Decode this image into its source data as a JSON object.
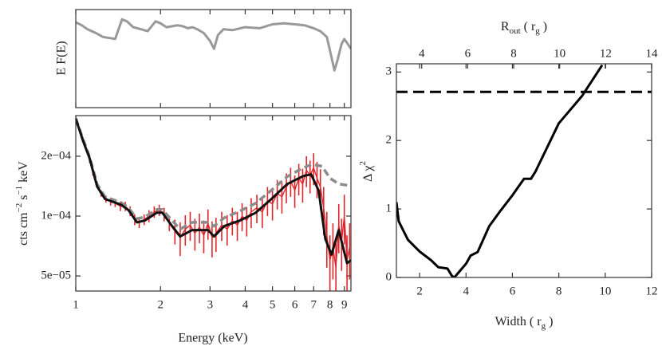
{
  "chart_data": [
    {
      "type": "line",
      "ylabel": "E F(E)",
      "log_x": true,
      "xlim": [
        1,
        9.5
      ],
      "ylim": [
        0,
        1
      ],
      "color": "#999999",
      "x": [
        1.0,
        1.05,
        1.1,
        1.18,
        1.25,
        1.32,
        1.38,
        1.42,
        1.46,
        1.52,
        1.6,
        1.7,
        1.8,
        1.86,
        1.92,
        2.0,
        2.1,
        2.2,
        2.3,
        2.4,
        2.5,
        2.6,
        2.7,
        2.85,
        3.0,
        3.1,
        3.2,
        3.35,
        3.6,
        4.0,
        4.5,
        5.0,
        5.5,
        6.0,
        6.5,
        7.0,
        7.4,
        7.8,
        8.05,
        8.3,
        8.5,
        8.8,
        9.0,
        9.2,
        9.4,
        9.5
      ],
      "values": [
        0.87,
        0.84,
        0.8,
        0.76,
        0.72,
        0.71,
        0.7,
        0.8,
        0.9,
        0.88,
        0.82,
        0.8,
        0.78,
        0.83,
        0.88,
        0.86,
        0.82,
        0.83,
        0.84,
        0.83,
        0.81,
        0.82,
        0.8,
        0.76,
        0.68,
        0.6,
        0.74,
        0.8,
        0.79,
        0.82,
        0.81,
        0.85,
        0.86,
        0.85,
        0.84,
        0.81,
        0.78,
        0.72,
        0.55,
        0.38,
        0.48,
        0.65,
        0.7,
        0.66,
        0.62,
        0.6
      ]
    },
    {
      "type": "line",
      "xlabel": "Energy (keV)",
      "ylabel": [
        "cts cm",
        "−2",
        " s",
        "−1",
        " keV"
      ],
      "log_x": true,
      "log_y": true,
      "xlim": [
        1,
        9.5
      ],
      "ylim": [
        4.2e-05,
        0.00032
      ],
      "xticks": [
        1,
        2,
        3,
        4,
        5,
        6,
        7,
        8,
        9
      ],
      "yticks": [
        {
          "value": 5e-05,
          "label": "5e−05"
        },
        {
          "value": 0.0001,
          "label": "1e−04"
        },
        {
          "value": 0.0002,
          "label": "2e−04"
        }
      ],
      "series": [
        {
          "style": "errorbar",
          "color": "#e0262a",
          "x": [
            1.0,
            1.03,
            1.06,
            1.09,
            1.12,
            1.15,
            1.19,
            1.23,
            1.28,
            1.33,
            1.38,
            1.44,
            1.5,
            1.56,
            1.62,
            1.68,
            1.75,
            1.82,
            1.9,
            1.98,
            2.06,
            2.15,
            2.25,
            2.35,
            2.45,
            2.55,
            2.65,
            2.75,
            2.85,
            2.95,
            3.05,
            3.15,
            3.3,
            3.45,
            3.6,
            3.75,
            3.9,
            4.05,
            4.2,
            4.4,
            4.6,
            4.8,
            5.0,
            5.2,
            5.4,
            5.6,
            5.8,
            6.0,
            6.2,
            6.4,
            6.6,
            6.8,
            7.0,
            7.2,
            7.4,
            7.6,
            7.8,
            8.0,
            8.2,
            8.4,
            8.6,
            8.8,
            9.0,
            9.2,
            9.4
          ],
          "values": [
            0.0003,
            0.000275,
            0.000245,
            0.000215,
            0.00019,
            0.000165,
            0.000145,
            0.00013,
            0.000122,
            0.000118,
            0.000116,
            0.000112,
            0.000112,
            0.000106,
            9.6e-05,
            9.3e-05,
            9.6e-05,
            0.0001,
            0.000105,
            0.000107,
            0.000102,
            9.2e-05,
            8.4e-05,
            7.8e-05,
            8.6e-05,
            9e-05,
            8.2e-05,
            8.8e-05,
            8e-05,
            9.2e-05,
            7.8e-05,
            8.2e-05,
            9e-05,
            8.6e-05,
            9.5e-05,
            9e-05,
            0.0001,
            9.5e-05,
            0.000105,
            0.00011,
            0.000105,
            0.00012,
            0.000115,
            0.00013,
            0.000125,
            0.00014,
            0.00015,
            0.000135,
            0.000155,
            0.000145,
            0.00017,
            0.00016,
            0.000175,
            0.000155,
            0.00014,
            0.00011,
            8e-05,
            6e-05,
            7e-05,
            5.5e-05,
            9e-05,
            7.5e-05,
            0.0001,
            6e-05,
            7e-05
          ],
          "errors": [
            5e-06,
            5e-06,
            5e-06,
            5e-06,
            5e-06,
            5e-06,
            5e-06,
            5e-06,
            5e-06,
            5e-06,
            5e-06,
            6e-06,
            6e-06,
            6e-06,
            6e-06,
            6e-06,
            6e-06,
            7e-06,
            7e-06,
            7e-06,
            8e-06,
            8e-06,
            1.2e-05,
            1.5e-05,
            1.5e-05,
            1.5e-05,
            1.5e-05,
            1.5e-05,
            1.5e-05,
            1.6e-05,
            1.6e-05,
            1.6e-05,
            1.5e-05,
            1.5e-05,
            1.5e-05,
            1.5e-05,
            1.6e-05,
            1.6e-05,
            1.8e-05,
            1.8e-05,
            1.8e-05,
            2e-05,
            2e-05,
            2.2e-05,
            2.2e-05,
            2.4e-05,
            2.5e-05,
            2.5e-05,
            2.8e-05,
            2.8e-05,
            3e-05,
            3e-05,
            3.2e-05,
            3.2e-05,
            3.2e-05,
            3e-05,
            2.5e-05,
            2e-05,
            2.2e-05,
            1.8e-05,
            2.5e-05,
            2.2e-05,
            2.8e-05,
            2e-05,
            2.2e-05
          ]
        },
        {
          "style": "dashed",
          "color": "#8c8c8c",
          "x": [
            1.0,
            1.06,
            1.12,
            1.19,
            1.27,
            1.45,
            1.54,
            1.65,
            1.76,
            1.94,
            2.03,
            2.2,
            2.35,
            2.59,
            2.95,
            3.1,
            3.37,
            3.83,
            4.36,
            4.96,
            5.64,
            6.43,
            6.9,
            7.5,
            8.0,
            8.6,
            9.5
          ],
          "values": [
            0.00031,
            0.000245,
            0.000198,
            0.000145,
            0.000125,
            0.000117,
            0.00011,
            9.7e-05,
            9.9e-05,
            0.000108,
            0.000108,
            9.5e-05,
            8.6e-05,
            9.3e-05,
            9.3e-05,
            8.9e-05,
            9.8e-05,
            0.000106,
            0.000116,
            0.000135,
            0.000158,
            0.000175,
            0.000182,
            0.000178,
            0.000155,
            0.000145,
            0.000142
          ]
        },
        {
          "style": "solid",
          "color": "#111111",
          "x": [
            1.0,
            1.06,
            1.12,
            1.19,
            1.27,
            1.45,
            1.54,
            1.65,
            1.76,
            1.94,
            2.03,
            2.2,
            2.35,
            2.59,
            2.95,
            3.1,
            3.37,
            3.83,
            4.36,
            4.96,
            5.64,
            6.43,
            6.86,
            7.3,
            7.7,
            8.1,
            8.6,
            9.2,
            9.5
          ],
          "values": [
            0.000309,
            0.00024,
            0.000195,
            0.000141,
            0.000122,
            0.000114,
            0.000107,
            9.3e-05,
            9.5e-05,
            0.000104,
            0.000104,
            8.9e-05,
            7.9e-05,
            8.5e-05,
            8.5e-05,
            7.9e-05,
            8.9e-05,
            9.5e-05,
            0.000104,
            0.000122,
            0.000145,
            0.000159,
            0.000162,
            0.000134,
            7.7e-05,
            6.4e-05,
            8.5e-05,
            5.8e-05,
            6e-05
          ]
        }
      ]
    },
    {
      "type": "line",
      "xlabel": [
        "Width ( r",
        "g",
        " )"
      ],
      "ylabel": [
        "Δ χ",
        "2"
      ],
      "x2label": [
        "R",
        "out",
        " ( r",
        "g",
        " )"
      ],
      "xlim": [
        1,
        12
      ],
      "ylim": [
        0,
        3.12
      ],
      "x2lim": [
        2.9,
        14
      ],
      "xticks": [
        2,
        4,
        6,
        8,
        10,
        12
      ],
      "yticks": [
        0,
        1,
        2,
        3
      ],
      "x2ticks": [
        4,
        6,
        8,
        10,
        12,
        14
      ],
      "threshold": 2.71,
      "color": "#000000",
      "x": [
        1.0,
        1.1,
        1.5,
        2.0,
        2.5,
        2.8,
        3.2,
        3.4,
        3.5,
        3.7,
        4.0,
        4.2,
        4.5,
        5.0,
        5.5,
        6.0,
        6.5,
        6.8,
        7.0,
        8.0,
        9.0,
        9.87
      ],
      "values": [
        1.1,
        0.82,
        0.55,
        0.38,
        0.25,
        0.15,
        0.13,
        0.02,
        0.0,
        0.08,
        0.2,
        0.32,
        0.37,
        0.75,
        0.98,
        1.2,
        1.44,
        1.44,
        1.55,
        2.25,
        2.65,
        3.1
      ]
    }
  ]
}
